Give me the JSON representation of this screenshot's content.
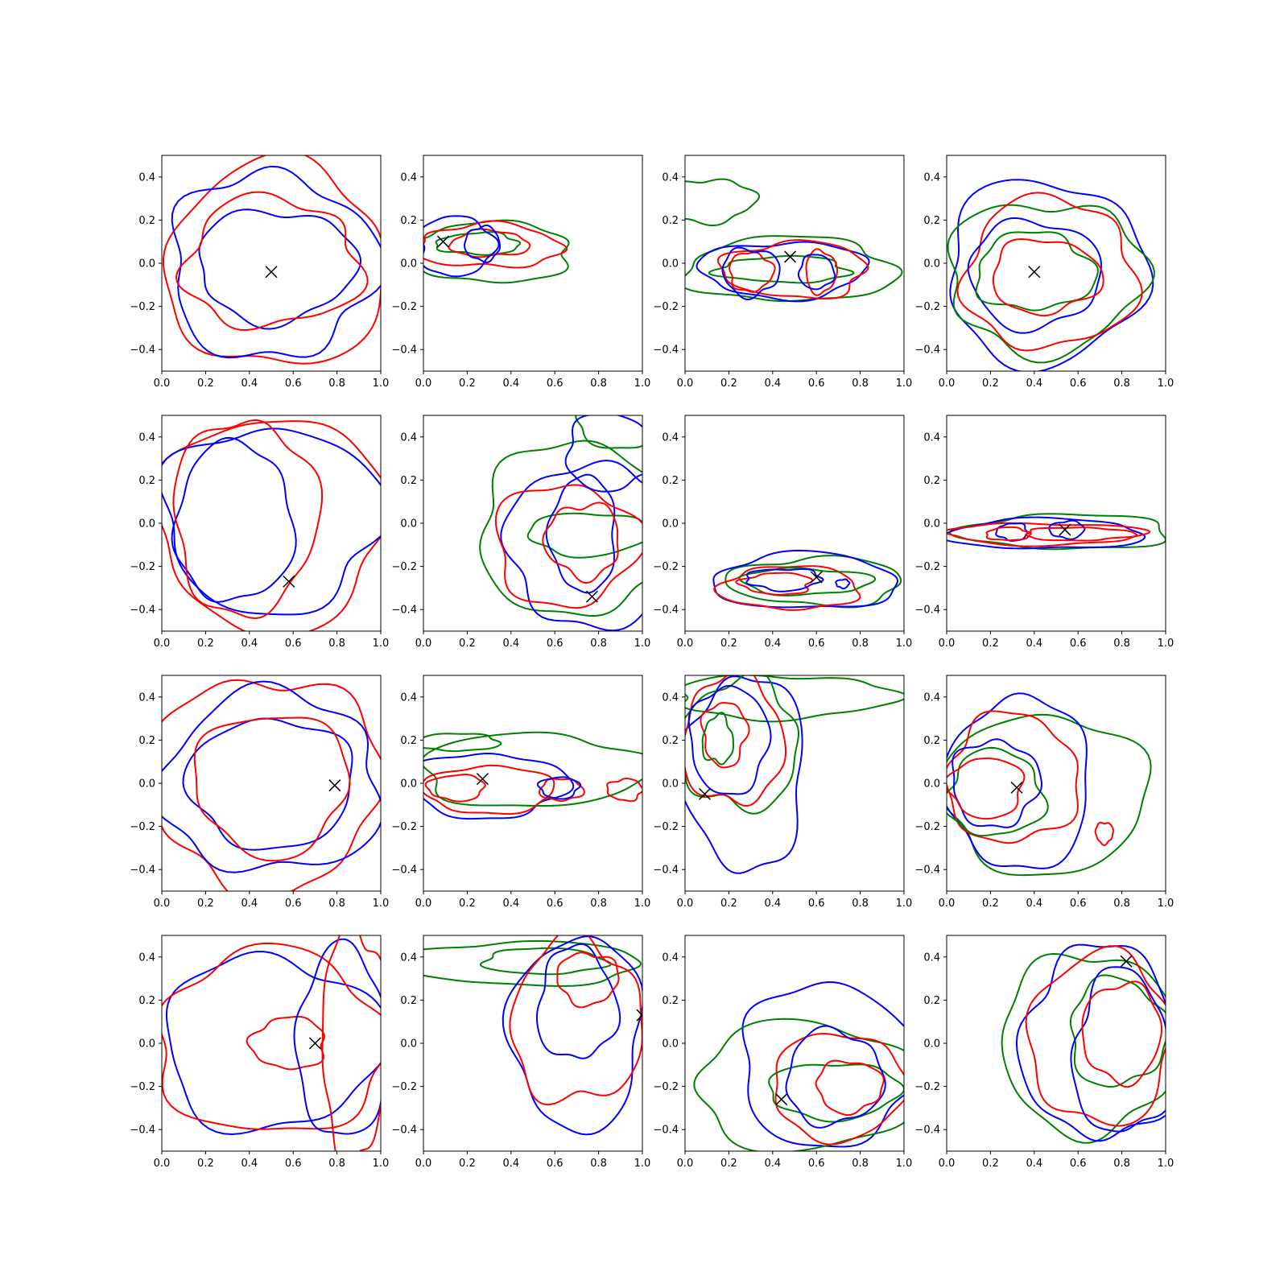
{
  "chart_data": {
    "type": "contour",
    "layout": {
      "rows": 4,
      "cols": 4
    },
    "xlim": [
      0.0,
      1.0
    ],
    "ylim": [
      -0.5,
      0.5
    ],
    "xticks": [
      "0.0",
      "0.2",
      "0.4",
      "0.6",
      "0.8",
      "1.0"
    ],
    "yticks": [
      "−0.4",
      "−0.2",
      "0.0",
      "0.2",
      "0.4"
    ],
    "xtick_values": [
      0.0,
      0.2,
      0.4,
      0.6,
      0.8,
      1.0
    ],
    "ytick_values": [
      -0.4,
      -0.2,
      0.0,
      0.2,
      0.4
    ],
    "colors": {
      "red": "#ff0000",
      "blue": "#0000ff",
      "green": "#008000",
      "marker": "#000000"
    },
    "marker_symbol": "x",
    "panels": [
      {
        "marker": [
          0.5,
          -0.04
        ],
        "contours": [
          {
            "color": "red",
            "cx": 0.52,
            "cy": -0.01,
            "rx": 0.5,
            "ry": 0.48
          },
          {
            "color": "blue",
            "cx": 0.5,
            "cy": -0.01,
            "rx": 0.47,
            "ry": 0.43
          },
          {
            "color": "blue",
            "cx": 0.52,
            "cy": -0.01,
            "rx": 0.36,
            "ry": 0.26
          },
          {
            "color": "red",
            "cx": 0.5,
            "cy": 0.0,
            "rx": 0.4,
            "ry": 0.3
          }
        ]
      },
      {
        "marker": [
          0.09,
          0.1
        ],
        "contours": [
          {
            "color": "green",
            "cx": 0.3,
            "cy": 0.05,
            "rx": 0.38,
            "ry": 0.14
          },
          {
            "color": "green",
            "cx": 0.25,
            "cy": 0.09,
            "rx": 0.19,
            "ry": 0.05
          },
          {
            "color": "red",
            "cx": 0.3,
            "cy": 0.08,
            "rx": 0.33,
            "ry": 0.1
          },
          {
            "color": "red",
            "cx": 0.3,
            "cy": 0.09,
            "rx": 0.18,
            "ry": 0.06
          },
          {
            "color": "blue",
            "cx": 0.15,
            "cy": 0.08,
            "rx": 0.17,
            "ry": 0.14
          },
          {
            "color": "blue",
            "cx": 0.27,
            "cy": 0.09,
            "rx": 0.08,
            "ry": 0.08
          }
        ]
      },
      {
        "marker": [
          0.48,
          0.03
        ],
        "contours": [
          {
            "color": "green",
            "cx": 0.1,
            "cy": 0.29,
            "rx": 0.22,
            "ry": 0.1
          },
          {
            "color": "green",
            "cx": 0.48,
            "cy": -0.03,
            "rx": 0.48,
            "ry": 0.15
          },
          {
            "color": "green",
            "cx": 0.45,
            "cy": -0.03,
            "rx": 0.3,
            "ry": 0.06
          },
          {
            "color": "blue",
            "cx": 0.45,
            "cy": -0.03,
            "rx": 0.38,
            "ry": 0.13
          },
          {
            "color": "red",
            "cx": 0.5,
            "cy": -0.03,
            "rx": 0.33,
            "ry": 0.13
          },
          {
            "color": "red",
            "cx": 0.3,
            "cy": -0.04,
            "rx": 0.1,
            "ry": 0.09
          },
          {
            "color": "red",
            "cx": 0.62,
            "cy": -0.04,
            "rx": 0.07,
            "ry": 0.1
          },
          {
            "color": "blue",
            "cx": 0.3,
            "cy": -0.04,
            "rx": 0.13,
            "ry": 0.11
          },
          {
            "color": "blue",
            "cx": 0.6,
            "cy": -0.04,
            "rx": 0.08,
            "ry": 0.08
          }
        ]
      },
      {
        "marker": [
          0.4,
          -0.04
        ],
        "contours": [
          {
            "color": "blue",
            "cx": 0.45,
            "cy": -0.04,
            "rx": 0.45,
            "ry": 0.43
          },
          {
            "color": "green",
            "cx": 0.45,
            "cy": -0.06,
            "rx": 0.45,
            "ry": 0.35
          },
          {
            "color": "red",
            "cx": 0.47,
            "cy": -0.05,
            "rx": 0.39,
            "ry": 0.35
          },
          {
            "color": "blue",
            "cx": 0.4,
            "cy": -0.05,
            "rx": 0.3,
            "ry": 0.25
          },
          {
            "color": "green",
            "cx": 0.4,
            "cy": -0.04,
            "rx": 0.27,
            "ry": 0.18
          },
          {
            "color": "red",
            "cx": 0.45,
            "cy": -0.06,
            "rx": 0.25,
            "ry": 0.17
          }
        ]
      },
      {
        "marker": [
          0.58,
          -0.27
        ],
        "contours": [
          {
            "color": "red",
            "cx": 0.5,
            "cy": 0.0,
            "rx": 0.52,
            "ry": 0.5
          },
          {
            "color": "blue",
            "cx": 0.5,
            "cy": 0.02,
            "rx": 0.5,
            "ry": 0.43
          },
          {
            "color": "blue",
            "cx": 0.33,
            "cy": 0.0,
            "rx": 0.27,
            "ry": 0.37
          },
          {
            "color": "red",
            "cx": 0.38,
            "cy": 0.03,
            "rx": 0.33,
            "ry": 0.45
          }
        ]
      },
      {
        "marker": [
          0.77,
          -0.34
        ],
        "contours": [
          {
            "color": "green",
            "cx": 0.9,
            "cy": 0.45,
            "rx": 0.2,
            "ry": 0.1
          },
          {
            "color": "green",
            "cx": 0.7,
            "cy": -0.03,
            "rx": 0.45,
            "ry": 0.4
          },
          {
            "color": "green",
            "cx": 0.75,
            "cy": -0.05,
            "rx": 0.27,
            "ry": 0.1
          },
          {
            "color": "blue",
            "cx": 0.78,
            "cy": -0.1,
            "rx": 0.4,
            "ry": 0.38
          },
          {
            "color": "blue",
            "cx": 0.73,
            "cy": -0.05,
            "rx": 0.15,
            "ry": 0.27
          },
          {
            "color": "red",
            "cx": 0.65,
            "cy": -0.1,
            "rx": 0.33,
            "ry": 0.28
          },
          {
            "color": "red",
            "cx": 0.73,
            "cy": -0.08,
            "rx": 0.17,
            "ry": 0.17
          },
          {
            "color": "blue",
            "cx": 0.85,
            "cy": 0.33,
            "rx": 0.2,
            "ry": 0.18
          }
        ]
      },
      {
        "marker": [
          0.6,
          -0.25
        ],
        "contours": [
          {
            "color": "green",
            "cx": 0.6,
            "cy": -0.27,
            "rx": 0.4,
            "ry": 0.11
          },
          {
            "color": "blue",
            "cx": 0.55,
            "cy": -0.27,
            "rx": 0.42,
            "ry": 0.13
          },
          {
            "color": "red",
            "cx": 0.48,
            "cy": -0.3,
            "rx": 0.32,
            "ry": 0.1
          },
          {
            "color": "green",
            "cx": 0.55,
            "cy": -0.27,
            "rx": 0.3,
            "ry": 0.06
          },
          {
            "color": "red",
            "cx": 0.42,
            "cy": -0.28,
            "rx": 0.16,
            "ry": 0.05
          },
          {
            "color": "blue",
            "cx": 0.45,
            "cy": -0.26,
            "rx": 0.17,
            "ry": 0.05
          },
          {
            "color": "blue",
            "cx": 0.72,
            "cy": -0.28,
            "rx": 0.03,
            "ry": 0.02
          }
        ]
      },
      {
        "marker": [
          0.54,
          -0.03
        ],
        "contours": [
          {
            "color": "green",
            "cx": 0.55,
            "cy": -0.04,
            "rx": 0.48,
            "ry": 0.08
          },
          {
            "color": "blue",
            "cx": 0.45,
            "cy": -0.05,
            "rx": 0.45,
            "ry": 0.07
          },
          {
            "color": "red",
            "cx": 0.45,
            "cy": -0.05,
            "rx": 0.45,
            "ry": 0.05
          },
          {
            "color": "blue",
            "cx": 0.3,
            "cy": -0.04,
            "rx": 0.07,
            "ry": 0.04
          },
          {
            "color": "blue",
            "cx": 0.55,
            "cy": -0.03,
            "rx": 0.08,
            "ry": 0.04
          },
          {
            "color": "red",
            "cx": 0.6,
            "cy": -0.05,
            "rx": 0.25,
            "ry": 0.03
          },
          {
            "color": "red",
            "cx": 0.28,
            "cy": -0.05,
            "rx": 0.1,
            "ry": 0.03
          }
        ]
      },
      {
        "marker": [
          0.79,
          -0.01
        ],
        "contours": [
          {
            "color": "red",
            "cx": 0.48,
            "cy": 0.0,
            "rx": 0.52,
            "ry": 0.5
          },
          {
            "color": "blue",
            "cx": 0.5,
            "cy": 0.0,
            "rx": 0.5,
            "ry": 0.42
          },
          {
            "color": "blue",
            "cx": 0.5,
            "cy": 0.0,
            "rx": 0.38,
            "ry": 0.3
          },
          {
            "color": "red",
            "cx": 0.5,
            "cy": 0.0,
            "rx": 0.35,
            "ry": 0.33
          }
        ]
      },
      {
        "marker": [
          0.27,
          0.02
        ],
        "contours": [
          {
            "color": "green",
            "cx": 0.15,
            "cy": 0.19,
            "rx": 0.2,
            "ry": 0.04
          },
          {
            "color": "green",
            "cx": 0.5,
            "cy": 0.06,
            "rx": 0.52,
            "ry": 0.17
          },
          {
            "color": "blue",
            "cx": 0.3,
            "cy": -0.01,
            "rx": 0.35,
            "ry": 0.15
          },
          {
            "color": "red",
            "cx": 0.3,
            "cy": -0.03,
            "rx": 0.3,
            "ry": 0.11
          },
          {
            "color": "red",
            "cx": 0.15,
            "cy": -0.02,
            "rx": 0.13,
            "ry": 0.06
          },
          {
            "color": "red",
            "cx": 0.63,
            "cy": -0.03,
            "rx": 0.1,
            "ry": 0.05
          },
          {
            "color": "red",
            "cx": 0.92,
            "cy": -0.03,
            "rx": 0.08,
            "ry": 0.05
          },
          {
            "color": "blue",
            "cx": 0.62,
            "cy": -0.02,
            "rx": 0.09,
            "ry": 0.05
          }
        ]
      },
      {
        "marker": [
          0.09,
          -0.05
        ],
        "contours": [
          {
            "color": "green",
            "cx": 0.45,
            "cy": 0.4,
            "rx": 0.5,
            "ry": 0.1
          },
          {
            "color": "blue",
            "cx": 0.27,
            "cy": 0.05,
            "rx": 0.28,
            "ry": 0.45
          },
          {
            "color": "green",
            "cx": 0.25,
            "cy": 0.18,
            "rx": 0.27,
            "ry": 0.3
          },
          {
            "color": "red",
            "cx": 0.22,
            "cy": 0.2,
            "rx": 0.23,
            "ry": 0.3
          },
          {
            "color": "blue",
            "cx": 0.2,
            "cy": 0.2,
            "rx": 0.18,
            "ry": 0.25
          },
          {
            "color": "red",
            "cx": 0.18,
            "cy": 0.23,
            "rx": 0.1,
            "ry": 0.15
          },
          {
            "color": "green",
            "cx": 0.15,
            "cy": 0.2,
            "rx": 0.07,
            "ry": 0.11
          }
        ]
      },
      {
        "marker": [
          0.32,
          -0.02
        ],
        "contours": [
          {
            "color": "green",
            "cx": 0.45,
            "cy": -0.05,
            "rx": 0.47,
            "ry": 0.37
          },
          {
            "color": "blue",
            "cx": 0.33,
            "cy": 0.0,
            "rx": 0.33,
            "ry": 0.4
          },
          {
            "color": "red",
            "cx": 0.3,
            "cy": 0.02,
            "rx": 0.3,
            "ry": 0.3
          },
          {
            "color": "green",
            "cx": 0.22,
            "cy": -0.05,
            "rx": 0.22,
            "ry": 0.2
          },
          {
            "color": "blue",
            "cx": 0.22,
            "cy": 0.0,
            "rx": 0.2,
            "ry": 0.2
          },
          {
            "color": "red",
            "cx": 0.18,
            "cy": -0.02,
            "rx": 0.17,
            "ry": 0.14
          },
          {
            "color": "red",
            "cx": 0.72,
            "cy": -0.23,
            "rx": 0.04,
            "ry": 0.05
          }
        ]
      },
      {
        "marker": [
          0.7,
          0.0
        ],
        "contours": [
          {
            "color": "blue",
            "cx": 0.5,
            "cy": 0.0,
            "rx": 0.5,
            "ry": 0.4
          },
          {
            "color": "red",
            "cx": 0.5,
            "cy": 0.0,
            "rx": 0.52,
            "ry": 0.43
          },
          {
            "color": "red",
            "cx": 0.58,
            "cy": 0.0,
            "rx": 0.17,
            "ry": 0.12
          },
          {
            "color": "blue",
            "cx": 0.82,
            "cy": 0.0,
            "rx": 0.2,
            "ry": 0.45
          },
          {
            "color": "red",
            "cx": 0.88,
            "cy": 0.0,
            "rx": 0.15,
            "ry": 0.55
          }
        ]
      },
      {
        "marker": [
          1.0,
          0.13
        ],
        "contours": [
          {
            "color": "green",
            "cx": 0.45,
            "cy": 0.37,
            "rx": 0.55,
            "ry": 0.1
          },
          {
            "color": "green",
            "cx": 0.55,
            "cy": 0.38,
            "rx": 0.28,
            "ry": 0.06
          },
          {
            "color": "blue",
            "cx": 0.7,
            "cy": 0.05,
            "rx": 0.3,
            "ry": 0.45
          },
          {
            "color": "red",
            "cx": 0.7,
            "cy": 0.1,
            "rx": 0.3,
            "ry": 0.38
          },
          {
            "color": "blue",
            "cx": 0.7,
            "cy": 0.18,
            "rx": 0.18,
            "ry": 0.26
          },
          {
            "color": "red",
            "cx": 0.75,
            "cy": 0.3,
            "rx": 0.14,
            "ry": 0.12
          }
        ]
      },
      {
        "marker": [
          0.44,
          -0.26
        ],
        "contours": [
          {
            "color": "blue",
            "cx": 0.65,
            "cy": -0.1,
            "rx": 0.4,
            "ry": 0.38
          },
          {
            "color": "green",
            "cx": 0.55,
            "cy": -0.2,
            "rx": 0.5,
            "ry": 0.3
          },
          {
            "color": "red",
            "cx": 0.7,
            "cy": -0.2,
            "rx": 0.3,
            "ry": 0.25
          },
          {
            "color": "green",
            "cx": 0.68,
            "cy": -0.22,
            "rx": 0.3,
            "ry": 0.13
          },
          {
            "color": "blue",
            "cx": 0.68,
            "cy": -0.16,
            "rx": 0.22,
            "ry": 0.22
          },
          {
            "color": "red",
            "cx": 0.75,
            "cy": -0.2,
            "rx": 0.15,
            "ry": 0.12
          }
        ]
      },
      {
        "marker": [
          0.82,
          0.38
        ],
        "contours": [
          {
            "color": "green",
            "cx": 0.65,
            "cy": 0.0,
            "rx": 0.4,
            "ry": 0.42
          },
          {
            "color": "blue",
            "cx": 0.7,
            "cy": 0.0,
            "rx": 0.35,
            "ry": 0.45
          },
          {
            "color": "red",
            "cx": 0.7,
            "cy": 0.02,
            "rx": 0.32,
            "ry": 0.4
          },
          {
            "color": "green",
            "cx": 0.78,
            "cy": 0.05,
            "rx": 0.22,
            "ry": 0.25
          },
          {
            "color": "blue",
            "cx": 0.8,
            "cy": -0.05,
            "rx": 0.22,
            "ry": 0.38
          },
          {
            "color": "red",
            "cx": 0.8,
            "cy": 0.05,
            "rx": 0.18,
            "ry": 0.23
          }
        ]
      }
    ]
  }
}
